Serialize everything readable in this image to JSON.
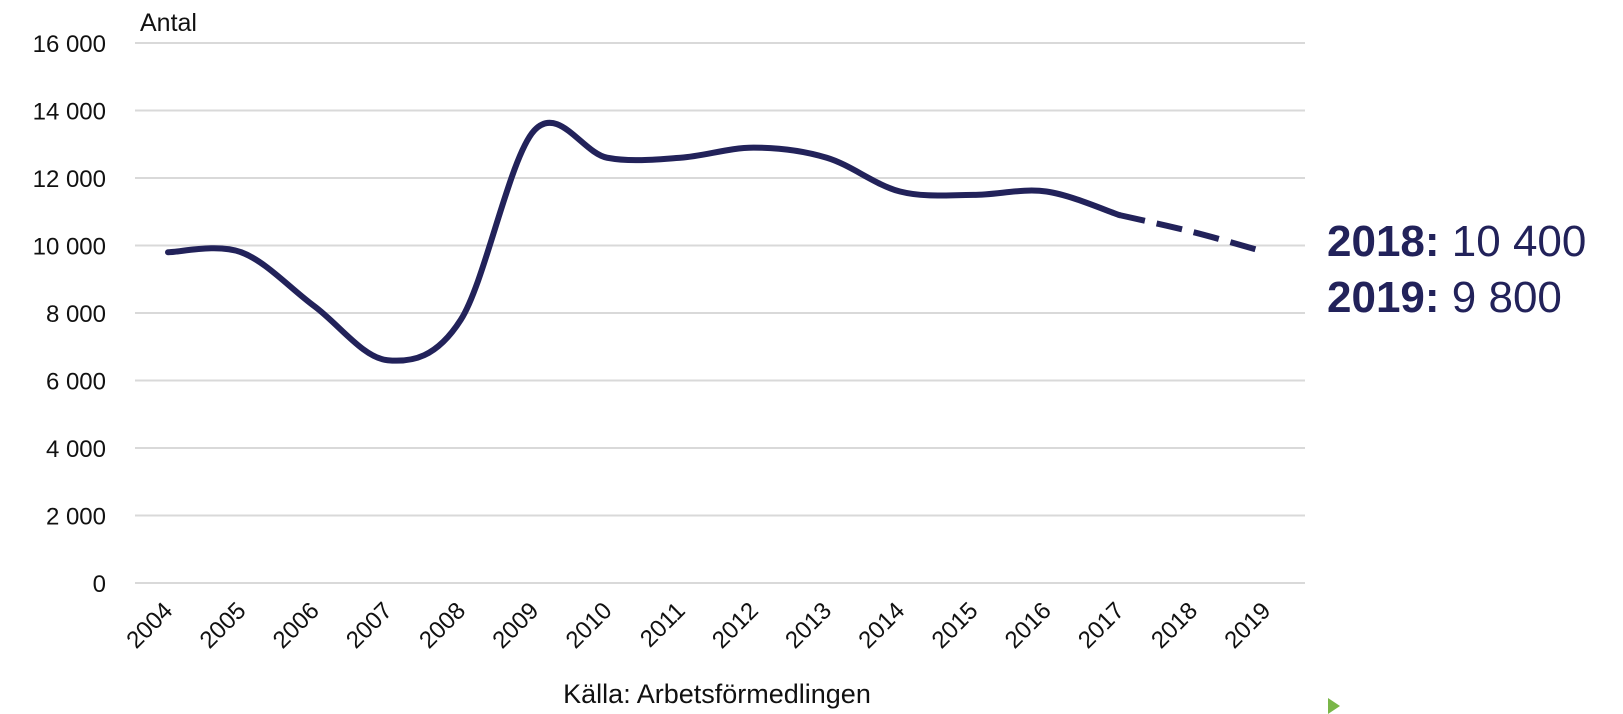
{
  "chart_data": {
    "type": "line",
    "ylabel": "Antal",
    "source": "Källa: Arbetsförmedlingen",
    "ylim": [
      0,
      16000
    ],
    "yticks": [
      0,
      2000,
      4000,
      6000,
      8000,
      10000,
      12000,
      14000,
      16000
    ],
    "ytick_labels": [
      "0",
      "2 000",
      "4 000",
      "6 000",
      "8 000",
      "10 000",
      "12 000",
      "14 000",
      "16 000"
    ],
    "categories": [
      "2004",
      "2005",
      "2006",
      "2007",
      "2008",
      "2009",
      "2010",
      "2011",
      "2012",
      "2013",
      "2014",
      "2015",
      "2016",
      "2017",
      "2018",
      "2019"
    ],
    "series": [
      {
        "values": [
          9800,
          9800,
          8200,
          6600,
          7800,
          13400,
          12600,
          12600,
          12900,
          12600,
          11600,
          11500,
          11600,
          10900,
          10400,
          9800
        ],
        "dashed_from_index": 13,
        "color": "#22225a"
      }
    ],
    "grid": true,
    "annotations": [
      {
        "year_label": "2018:",
        "value_label": "10 400"
      },
      {
        "year_label": "2019:",
        "value_label": "9 800"
      }
    ]
  }
}
